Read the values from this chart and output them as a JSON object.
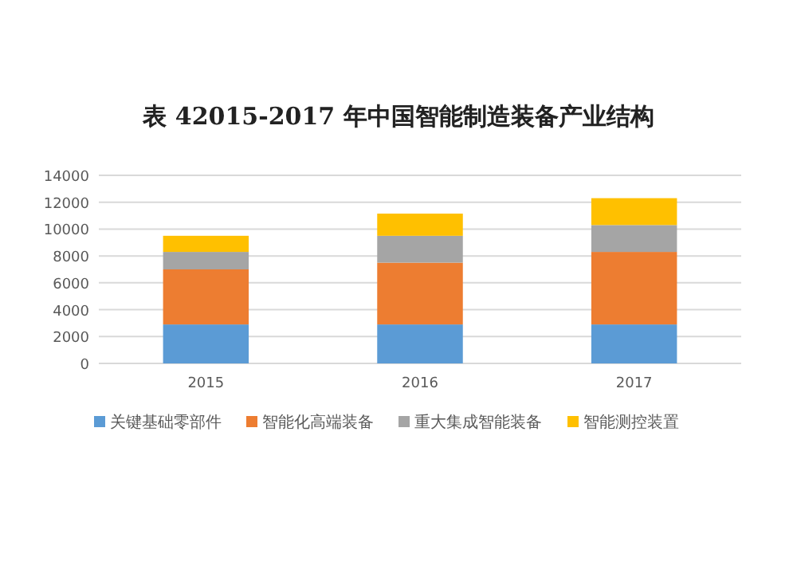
{
  "chart_data": {
    "type": "bar",
    "title": "表 42015-2017 年中国智能制造装备产业结构",
    "stacked": true,
    "categories": [
      "2015",
      "2016",
      "2017"
    ],
    "series": [
      {
        "name": "关键基础零部件",
        "color": "#5b9bd5",
        "values": [
          2900,
          2900,
          2900
        ]
      },
      {
        "name": "智能化高端装备",
        "color": "#ed7d31",
        "values": [
          4100,
          4600,
          5400
        ]
      },
      {
        "name": "重大集成智能装备",
        "color": "#a5a5a5",
        "values": [
          1300,
          2000,
          2000
        ]
      },
      {
        "name": "智能测控装置",
        "color": "#ffc000",
        "values": [
          1200,
          1650,
          2000
        ]
      }
    ],
    "ylim": [
      0,
      14000
    ],
    "yticks": [
      0,
      2000,
      4000,
      6000,
      8000,
      10000,
      12000,
      14000
    ],
    "grid": "y",
    "legend": "bottom"
  }
}
